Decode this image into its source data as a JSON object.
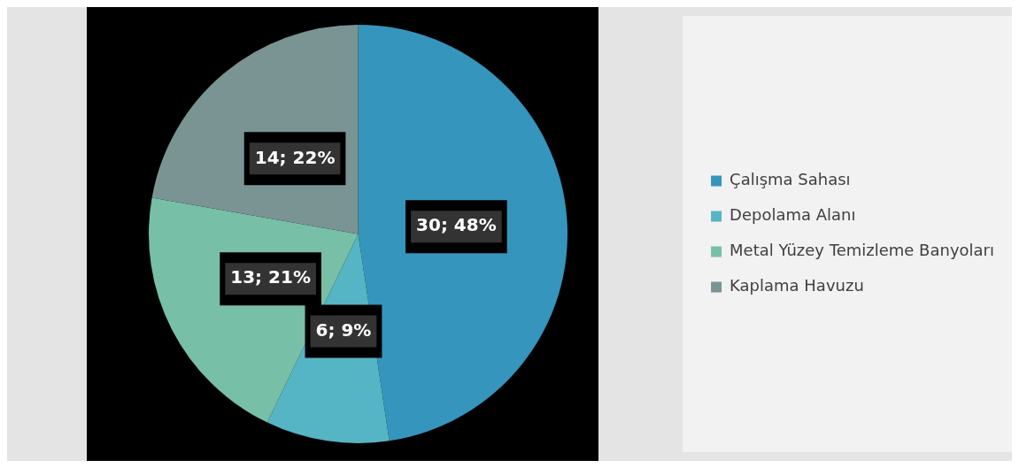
{
  "chart_data": {
    "type": "pie",
    "categories": [
      "Çalışma Sahası",
      "Depolama Alanı",
      "Metal Yüzey Temizleme Banyoları",
      "Kaplama Havuzu"
    ],
    "values": [
      30,
      6,
      13,
      14
    ],
    "colors": [
      "#3595bc",
      "#55b5c4",
      "#77bfa7",
      "#7a9494"
    ],
    "value_labels": [
      "30; 48%",
      "6; 9%",
      "13; 21%",
      "14; 22%"
    ],
    "legend": "right"
  }
}
